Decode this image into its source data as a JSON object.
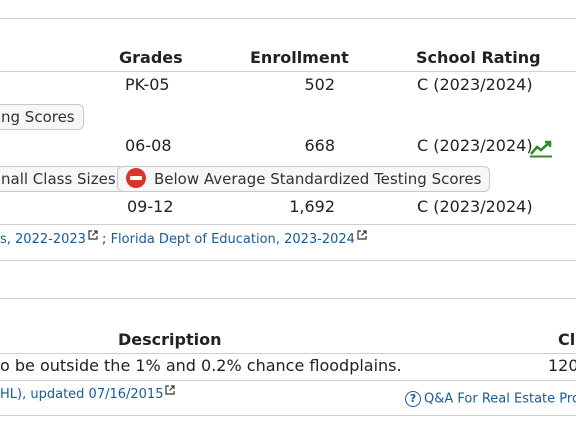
{
  "schools": {
    "headers": {
      "grades": "Grades",
      "enrollment": "Enrollment",
      "rating": "School Rating"
    },
    "rows": [
      {
        "grades": "PK-05",
        "enrollment": "502",
        "rating": "C (2023/2024)"
      },
      {
        "grades": "06-08",
        "enrollment": "668",
        "rating": "C (2023/2024)"
      },
      {
        "grades": "09-12",
        "enrollment": "1,692",
        "rating": "C (2023/2024)"
      }
    ],
    "tags": {
      "row1_partial": "ng Scores",
      "row2_small_class": "nall Class Sizes",
      "row2_below_avg": "Below Average Standardized Testing Scores"
    },
    "sources": {
      "link1": "s, 2022-2023",
      "separator": ";",
      "link2": "Florida Dept of Education, 2023-2024"
    },
    "trend_icon": "trend-up-icon",
    "trend_color": "#2e8b2e"
  },
  "flood": {
    "headers": {
      "description": "Description",
      "cl": "Cl"
    },
    "rows": [
      {
        "description": "o be outside the 1% and 0.2% chance floodplains.",
        "cl": "120"
      }
    ],
    "source": "HL), updated 07/16/2015",
    "qa_link": "Q&A For Real Estate Profe"
  },
  "colors": {
    "link": "#1a5a96",
    "border": "#cfcfcf",
    "alert": "#d9342b"
  }
}
